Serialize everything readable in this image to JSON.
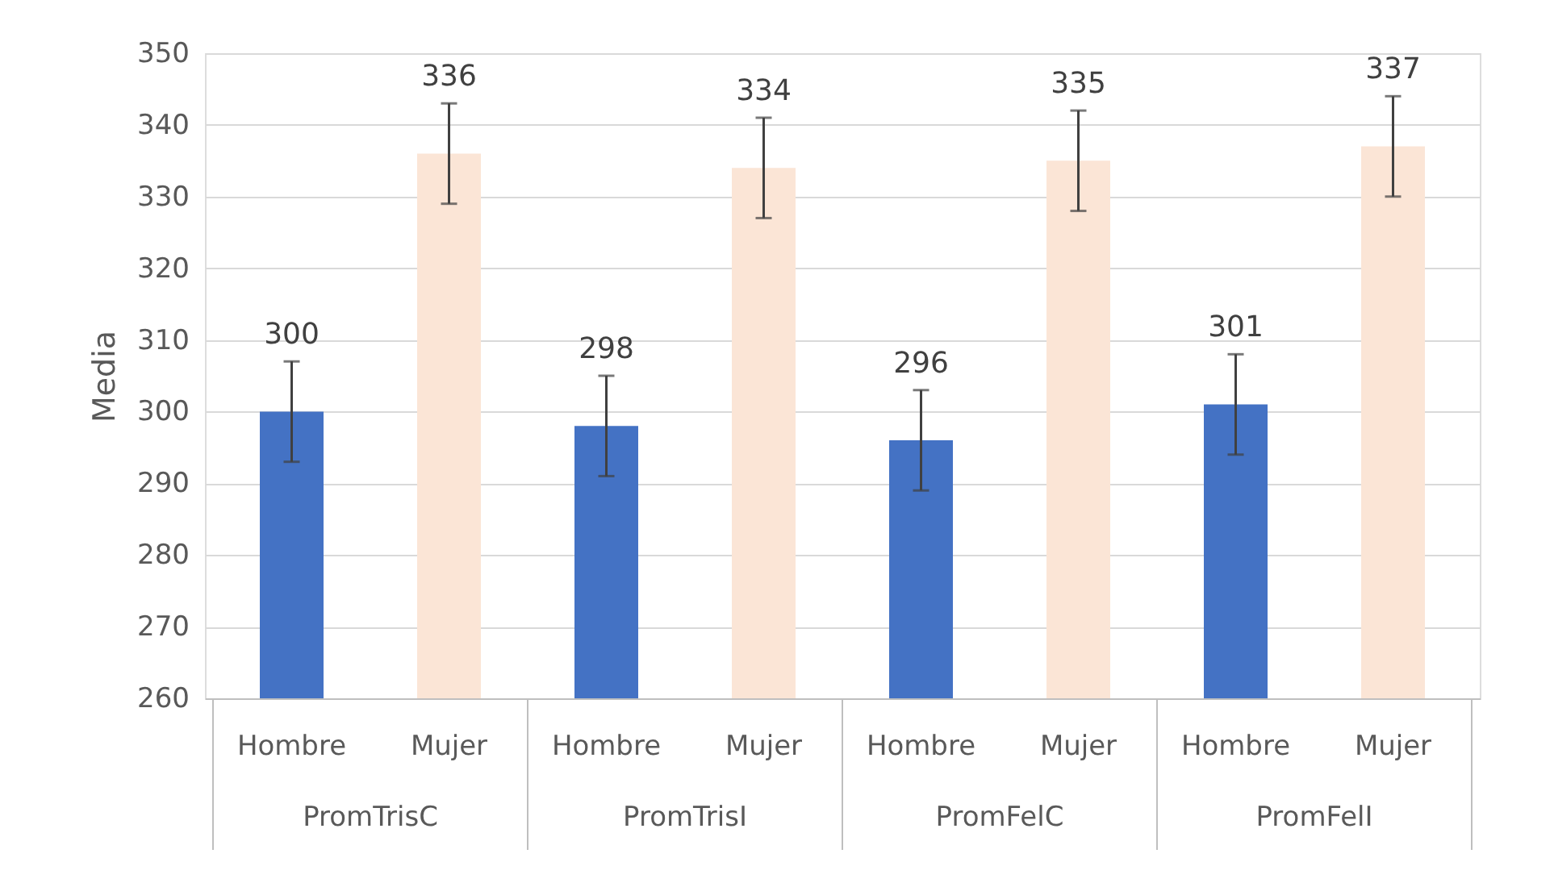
{
  "chart_data": {
    "type": "bar",
    "ylabel": "Media",
    "categories": [
      "PromTrisC",
      "PromTrisI",
      "PromFelC",
      "PromFelI"
    ],
    "series": [
      {
        "name": "Hombre",
        "color": "#4472c4",
        "values": [
          300,
          298,
          296,
          301
        ],
        "errors": [
          7,
          7,
          7,
          7
        ]
      },
      {
        "name": "Mujer",
        "color": "#fbe5d6",
        "values": [
          336,
          334,
          335,
          337
        ],
        "errors": [
          7,
          7,
          7,
          7
        ]
      }
    ],
    "ylim": [
      260,
      350
    ],
    "yticks": [
      260,
      270,
      280,
      290,
      300,
      310,
      320,
      330,
      340,
      350
    ],
    "grid": "y",
    "data_labels": true
  }
}
